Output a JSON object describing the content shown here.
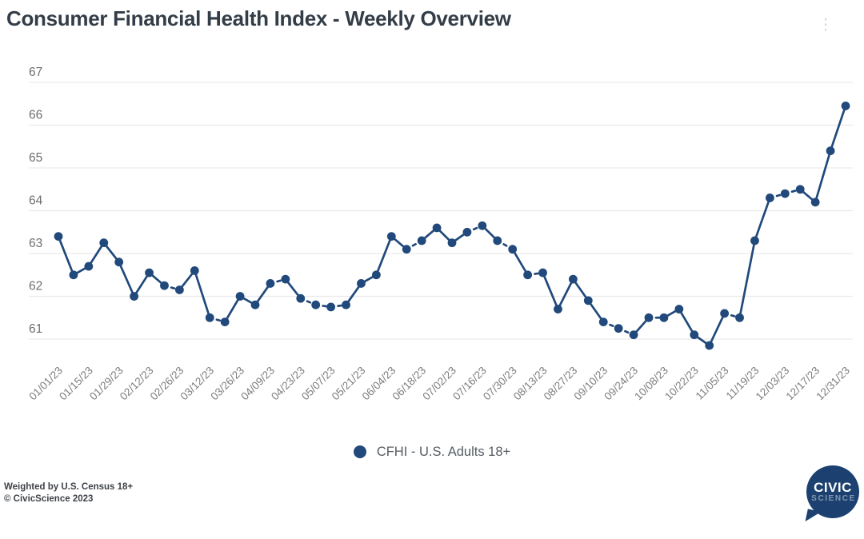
{
  "header": {
    "title": "Consumer Financial Health Index - Weekly Overview",
    "menu_icon": "⋮"
  },
  "chart_data": {
    "type": "line",
    "title": "Consumer Financial Health Index - Weekly Overview",
    "x": [
      "01/01/23",
      "01/08/23",
      "01/15/23",
      "01/22/23",
      "01/29/23",
      "02/05/23",
      "02/12/23",
      "02/19/23",
      "02/26/23",
      "03/05/23",
      "03/12/23",
      "03/19/23",
      "03/26/23",
      "04/02/23",
      "04/09/23",
      "04/16/23",
      "04/23/23",
      "04/30/23",
      "05/07/23",
      "05/14/23",
      "05/21/23",
      "05/28/23",
      "06/04/23",
      "06/11/23",
      "06/18/23",
      "06/25/23",
      "07/02/23",
      "07/09/23",
      "07/16/23",
      "07/23/23",
      "07/30/23",
      "08/06/23",
      "08/13/23",
      "08/20/23",
      "08/27/23",
      "09/03/23",
      "09/10/23",
      "09/17/23",
      "09/24/23",
      "10/01/23",
      "10/08/23",
      "10/15/23",
      "10/22/23",
      "10/29/23",
      "11/05/23",
      "11/12/23",
      "11/19/23",
      "11/26/23",
      "12/03/23",
      "12/10/23",
      "12/17/23",
      "12/24/23",
      "12/31/23"
    ],
    "series": [
      {
        "name": "CFHI - U.S. Adults 18+",
        "color": "#21497b",
        "values": [
          63.4,
          62.5,
          62.7,
          63.25,
          62.8,
          62.0,
          62.55,
          62.25,
          62.15,
          62.6,
          61.5,
          61.4,
          62.0,
          61.8,
          62.3,
          62.4,
          61.95,
          61.8,
          61.75,
          61.8,
          62.3,
          62.5,
          63.4,
          63.1,
          63.3,
          63.6,
          63.25,
          63.5,
          63.65,
          63.3,
          63.1,
          62.5,
          62.55,
          61.7,
          62.4,
          61.9,
          61.4,
          61.25,
          61.1,
          61.5,
          61.5,
          61.7,
          61.1,
          60.85,
          61.6,
          61.5,
          63.3,
          64.3,
          64.4,
          64.5,
          64.2,
          65.4,
          66.45
        ]
      }
    ],
    "x_tick_labels": [
      "01/01/23",
      "01/15/23",
      "01/29/23",
      "02/12/23",
      "02/26/23",
      "03/12/23",
      "03/26/23",
      "04/09/23",
      "04/23/23",
      "05/07/23",
      "05/21/23",
      "06/04/23",
      "06/18/23",
      "07/02/23",
      "07/16/23",
      "07/30/23",
      "08/13/23",
      "08/27/23",
      "09/10/23",
      "09/24/23",
      "10/08/23",
      "10/22/23",
      "11/05/23",
      "11/19/23",
      "12/03/23",
      "12/17/23",
      "12/31/23"
    ],
    "yticks": [
      61,
      62,
      63,
      64,
      65,
      66,
      67
    ],
    "ylim": [
      60.5,
      67.3
    ],
    "grid": "horizontal",
    "legend_position": "bottom-center",
    "marker": "filled-circle",
    "dashed_when_change_lte": 0.2
  },
  "legend": {
    "marker_color": "#21497b",
    "label": "CFHI - U.S. Adults 18+"
  },
  "footer": {
    "weighting_note": "Weighted by U.S. Census 18+",
    "copyright": "© CivicScience 2023"
  },
  "logo": {
    "line1": "CIVIC",
    "line2": "SCIENCE",
    "bg_color": "#1c4170"
  }
}
